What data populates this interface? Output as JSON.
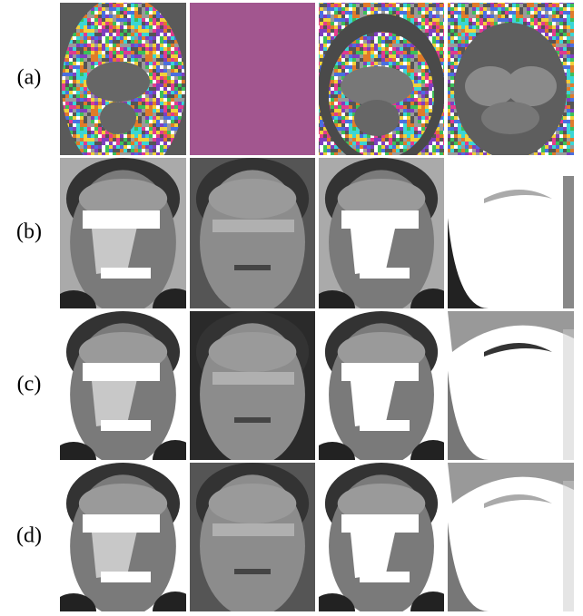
{
  "rows": [
    {
      "label": "(a)"
    },
    {
      "label": "(b)"
    },
    {
      "label": "(c)"
    },
    {
      "label": "(d)"
    }
  ]
}
